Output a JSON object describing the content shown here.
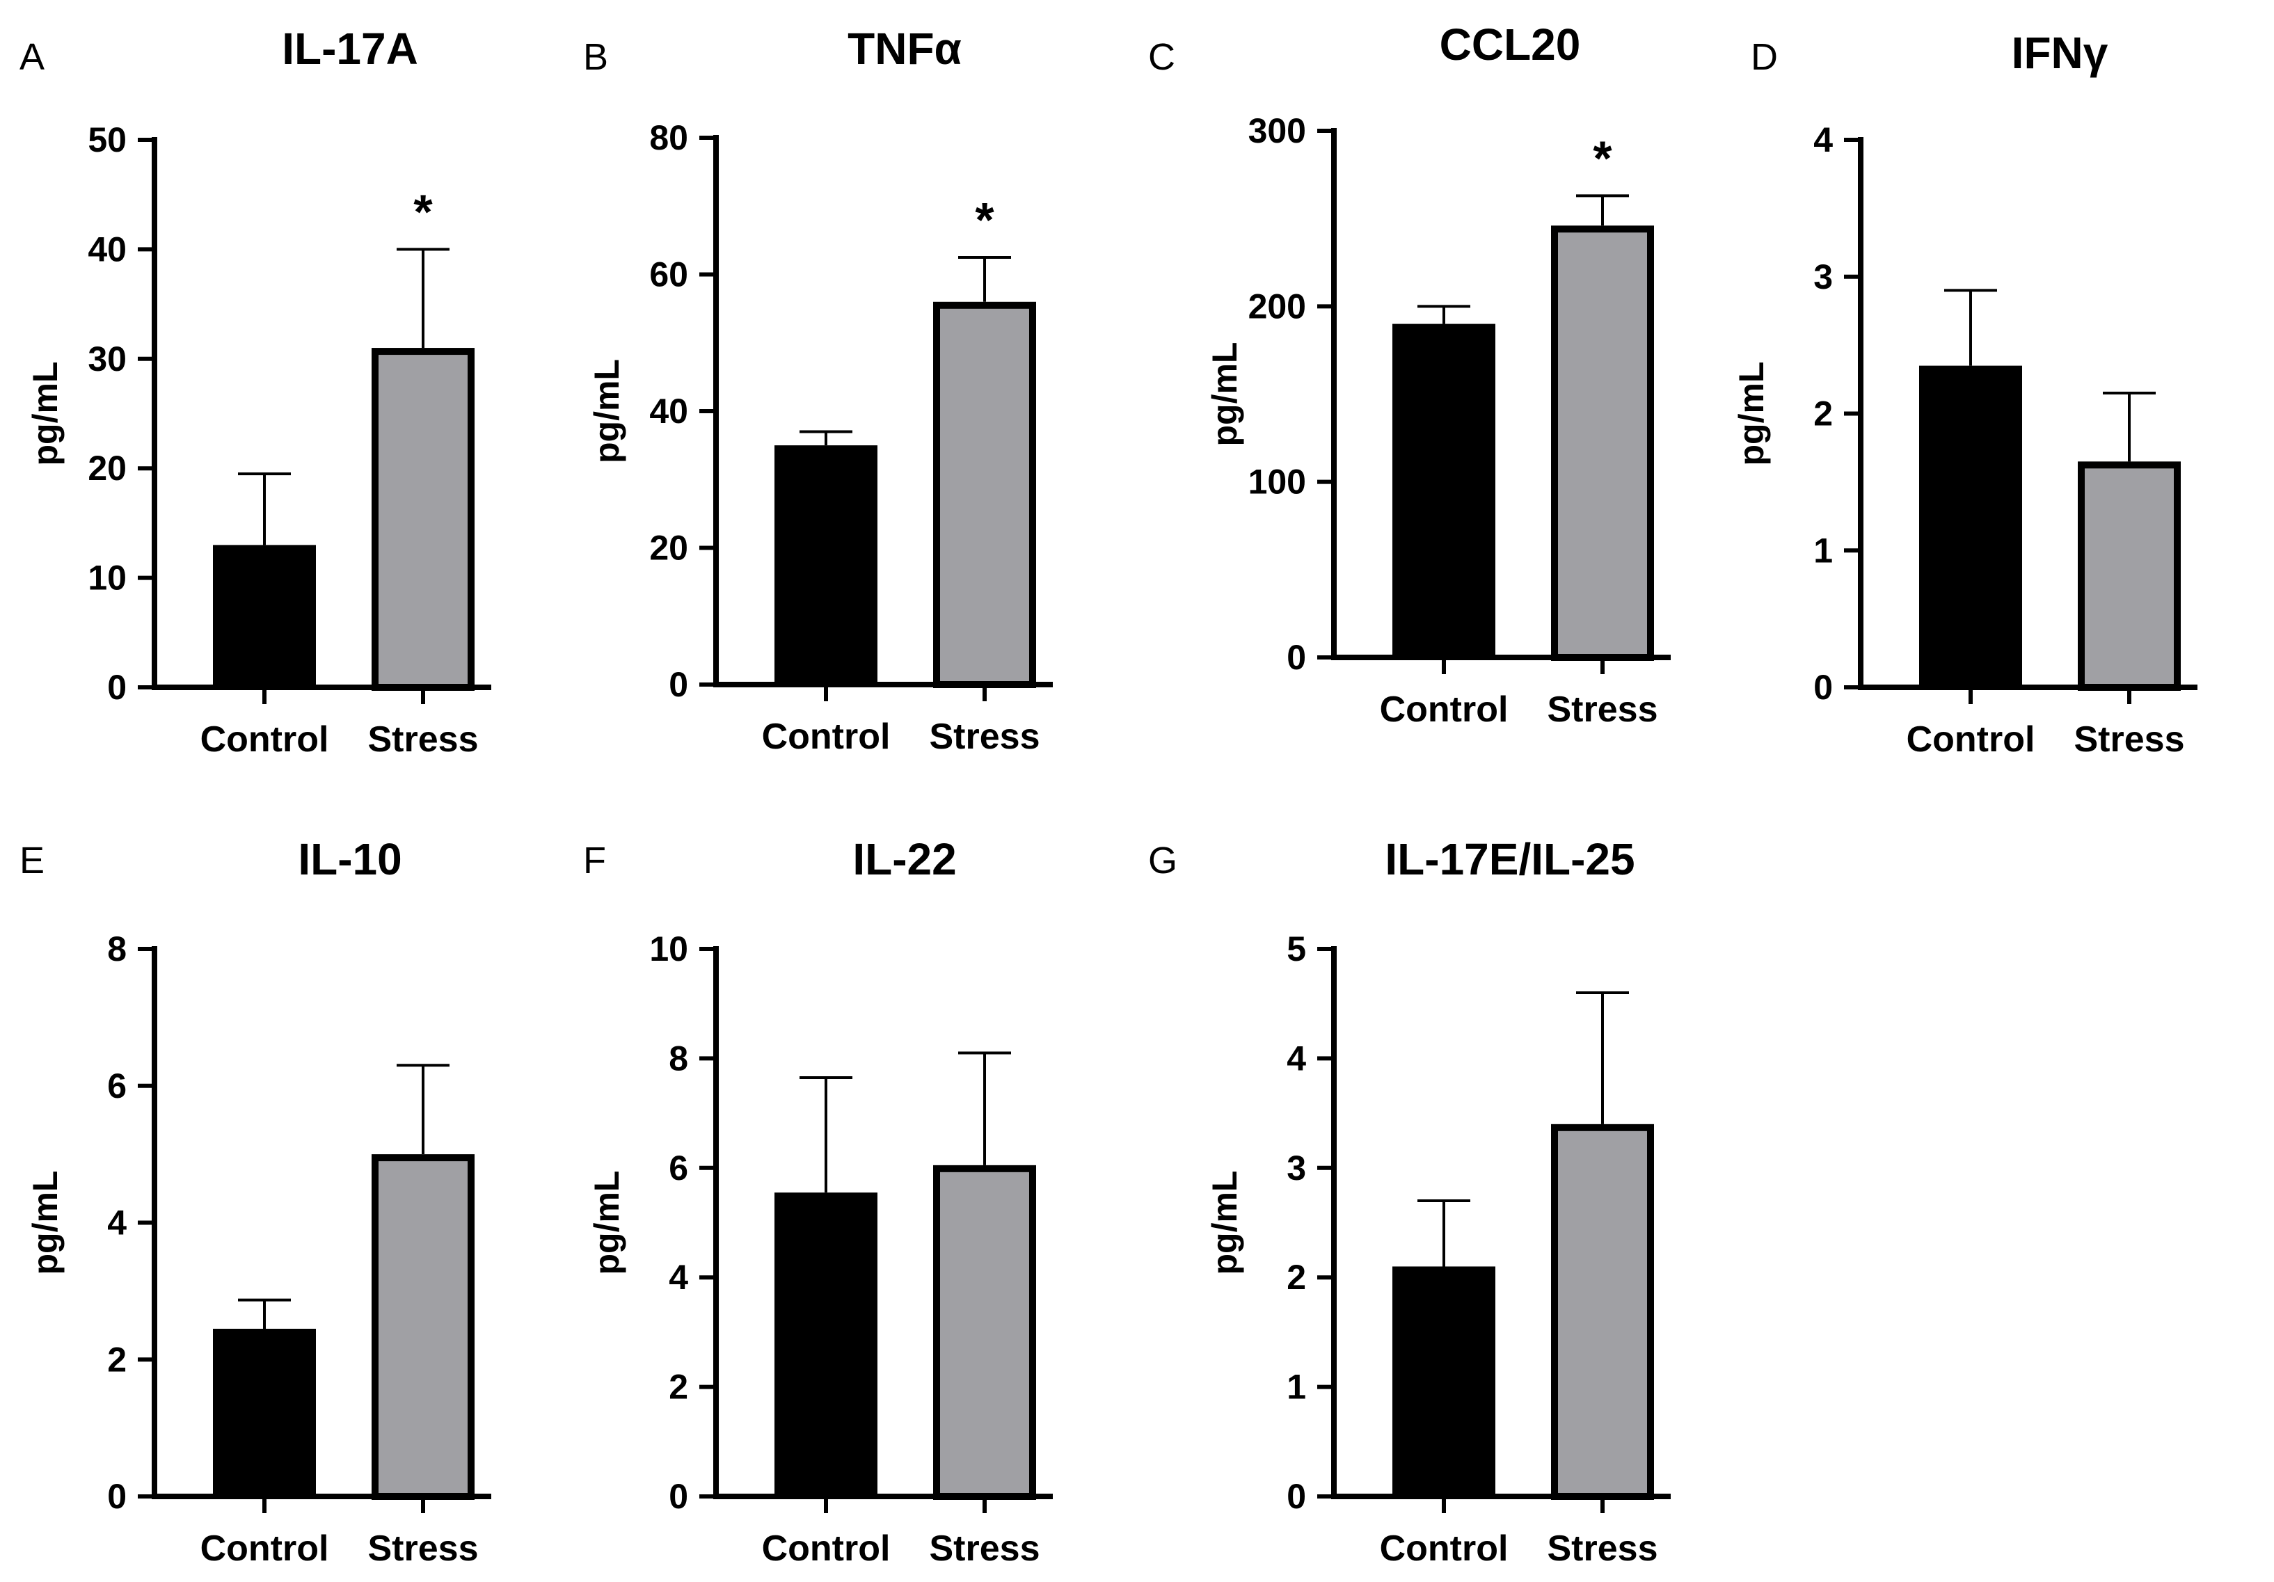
{
  "chart_data": [
    {
      "type": "bar",
      "panel": "A",
      "title": "IL-17A",
      "ylabel": "pg/mL",
      "categories": [
        "Control",
        "Stress"
      ],
      "values": [
        13,
        31
      ],
      "errors": [
        6.5,
        9
      ],
      "ylim": [
        0,
        50
      ],
      "yticks": [
        0,
        10,
        20,
        30,
        40,
        50
      ],
      "significance": [
        "",
        "*"
      ],
      "colors": [
        "#000000",
        "#a0a0a4"
      ]
    },
    {
      "type": "bar",
      "panel": "B",
      "title": "TNFα",
      "ylabel": "pg/mL",
      "categories": [
        "Control",
        "Stress"
      ],
      "values": [
        35,
        56
      ],
      "errors": [
        2,
        6.5
      ],
      "ylim": [
        0,
        80
      ],
      "yticks": [
        0,
        20,
        40,
        60,
        80
      ],
      "significance": [
        "",
        "*"
      ],
      "colors": [
        "#000000",
        "#a0a0a4"
      ]
    },
    {
      "type": "bar",
      "panel": "C",
      "title": "CCL20",
      "ylabel": "pg/mL",
      "categories": [
        "Control",
        "Stress"
      ],
      "values": [
        190,
        246
      ],
      "errors": [
        10,
        17
      ],
      "ylim": [
        0,
        300
      ],
      "yticks": [
        0,
        100,
        200,
        300
      ],
      "significance": [
        "",
        "*"
      ],
      "colors": [
        "#000000",
        "#a0a0a4"
      ]
    },
    {
      "type": "bar",
      "panel": "D",
      "title": "IFNγ",
      "ylabel": "pg/mL",
      "categories": [
        "Control",
        "Stress"
      ],
      "values": [
        2.35,
        1.65
      ],
      "errors": [
        0.55,
        0.5
      ],
      "ylim": [
        0,
        4
      ],
      "yticks": [
        0,
        1,
        2,
        3,
        4
      ],
      "significance": [
        "",
        ""
      ],
      "colors": [
        "#000000",
        "#a0a0a4"
      ]
    },
    {
      "type": "bar",
      "panel": "E",
      "title": "IL-10",
      "ylabel": "pg/mL",
      "categories": [
        "Control",
        "Stress"
      ],
      "values": [
        2.45,
        5.0
      ],
      "errors": [
        0.42,
        1.3
      ],
      "ylim": [
        0,
        8
      ],
      "yticks": [
        0,
        2,
        4,
        6,
        8
      ],
      "significance": [
        "",
        ""
      ],
      "colors": [
        "#000000",
        "#a0a0a4"
      ]
    },
    {
      "type": "bar",
      "panel": "F",
      "title": "IL-22",
      "ylabel": "pg/mL",
      "categories": [
        "Control",
        "Stress"
      ],
      "values": [
        5.55,
        6.05
      ],
      "errors": [
        2.1,
        2.05
      ],
      "ylim": [
        0,
        10
      ],
      "yticks": [
        0,
        2,
        4,
        6,
        8,
        10
      ],
      "significance": [
        "",
        ""
      ],
      "colors": [
        "#000000",
        "#a0a0a4"
      ]
    },
    {
      "type": "bar",
      "panel": "G",
      "title": "IL-17E/IL-25",
      "ylabel": "pg/mL",
      "categories": [
        "Control",
        "Stress"
      ],
      "values": [
        2.1,
        3.4
      ],
      "errors": [
        0.6,
        1.2
      ],
      "ylim": [
        0,
        5
      ],
      "yticks": [
        0,
        1,
        2,
        3,
        4,
        5
      ],
      "significance": [
        "",
        ""
      ],
      "colors": [
        "#000000",
        "#a0a0a4"
      ]
    }
  ]
}
